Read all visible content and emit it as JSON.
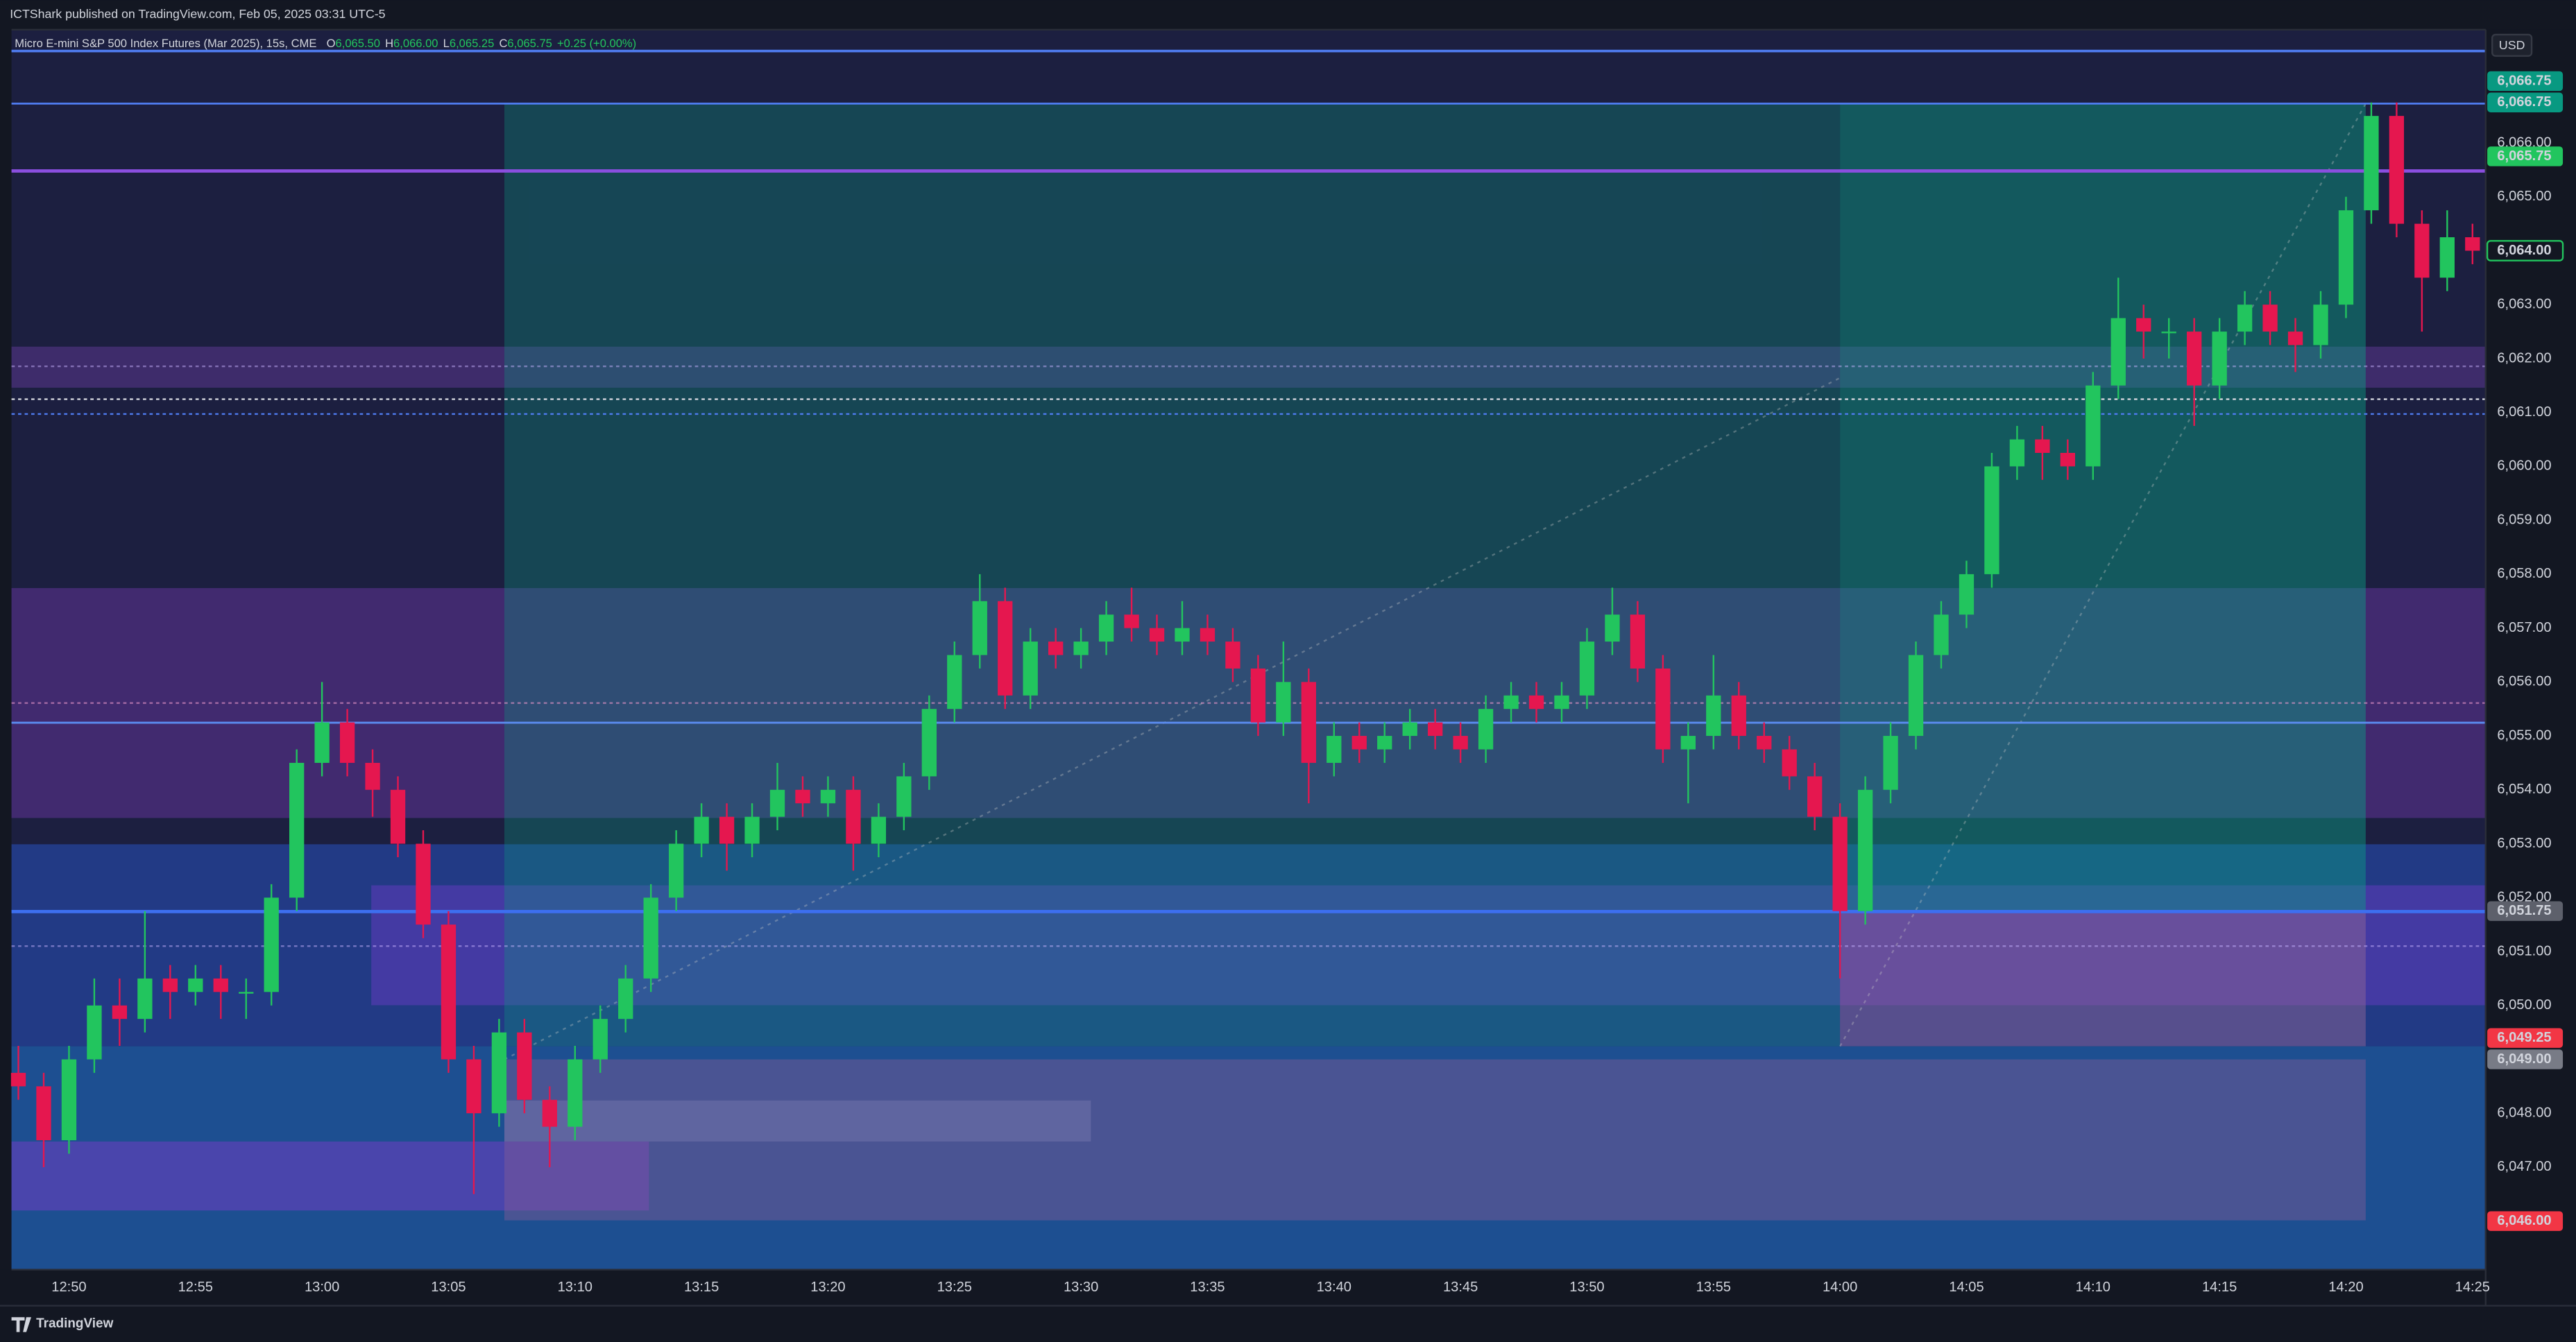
{
  "header": {
    "publisher": "ICTShark published on TradingView.com, Feb 05, 2025 03:31 UTC-5"
  },
  "footer": {
    "brand": "TradingView"
  },
  "chart_data": {
    "type": "candlestick",
    "symbol": "Micro E-mini S&P 500 Index Futures (Mar 2025), 15s, CME",
    "ohlc_legend": [
      {
        "key": "O",
        "value": "6,065.50"
      },
      {
        "key": "H",
        "value": "6,066.00"
      },
      {
        "key": "L",
        "value": "6,065.25"
      },
      {
        "key": "C",
        "value": "6,065.75"
      }
    ],
    "change": "+0.25 (+0.00%)",
    "currency": "USD",
    "up_color": "#22c55e",
    "down_color": "#e5174f",
    "grid": false,
    "ylim": [
      6045.1,
      6068.1
    ],
    "yticks": [
      {
        "value": 6047,
        "label": "6,047.00"
      },
      {
        "value": 6048,
        "label": "6,048.00"
      },
      {
        "value": 6050,
        "label": "6,050.00"
      },
      {
        "value": 6051,
        "label": "6,051.00"
      },
      {
        "value": 6052,
        "label": "6,052.00"
      },
      {
        "value": 6053,
        "label": "6,053.00"
      },
      {
        "value": 6054,
        "label": "6,054.00"
      },
      {
        "value": 6055,
        "label": "6,055.00"
      },
      {
        "value": 6056,
        "label": "6,056.00"
      },
      {
        "value": 6057,
        "label": "6,057.00"
      },
      {
        "value": 6058,
        "label": "6,058.00"
      },
      {
        "value": 6059,
        "label": "6,059.00"
      },
      {
        "value": 6060,
        "label": "6,060.00"
      },
      {
        "value": 6061,
        "label": "6,061.00"
      },
      {
        "value": 6062,
        "label": "6,062.00"
      },
      {
        "value": 6063,
        "label": "6,063.00"
      },
      {
        "value": 6065,
        "label": "6,065.00"
      },
      {
        "value": 6066,
        "label": "6,066.00"
      }
    ],
    "price_labels": [
      {
        "value": 6066.75,
        "label": "6,066.75",
        "color": "#089981",
        "text_color": "#ffffff"
      },
      {
        "value": 6066.75,
        "label": "6,066.75",
        "color": "#089981",
        "text_color": "#ffffff"
      },
      {
        "value": 6065.75,
        "label": "6,065.75",
        "color": "#22c55e",
        "text_color": "#0b1a10"
      },
      {
        "value": 6064,
        "label": "6,064.00",
        "color": "#131722",
        "text_color": "#22c55e"
      },
      {
        "value": 6051.75,
        "label": "6,051.75",
        "color": "#5d606b",
        "text_color": "#ffffff"
      },
      {
        "value": 6049.25,
        "label": "6,049.25",
        "color": "#f23645",
        "text_color": "#ffffff"
      },
      {
        "value": 6049,
        "label": "6,049.00",
        "color": "#787b86",
        "text_color": "#ffffff"
      },
      {
        "value": 6046,
        "label": "6,046.00",
        "color": "#f23645",
        "text_color": "#ffffff"
      }
    ],
    "categories": [
      null,
      null,
      "12:50",
      null,
      null,
      null,
      null,
      "12:55",
      null,
      null,
      null,
      null,
      "13:00",
      null,
      null,
      null,
      null,
      "13:05",
      null,
      null,
      null,
      null,
      "13:10",
      null,
      null,
      null,
      null,
      "13:15",
      null,
      null,
      null,
      null,
      "13:20",
      null,
      null,
      null,
      null,
      "13:25",
      null,
      null,
      null,
      null,
      "13:30",
      null,
      null,
      null,
      null,
      "13:35",
      null,
      null,
      null,
      null,
      "13:40",
      null,
      null,
      null,
      null,
      "13:45",
      null,
      null,
      null,
      null,
      "13:50",
      null,
      null,
      null,
      null,
      "13:55",
      null,
      null,
      null,
      null,
      "14:00",
      null,
      null,
      null,
      null,
      "14:05",
      null,
      null,
      null,
      null,
      "14:10",
      null,
      null,
      null,
      null,
      "14:15",
      null,
      null,
      null,
      null,
      "14:20",
      null,
      null,
      null,
      null,
      "14:25"
    ],
    "open": [
      6048.75,
      6048.5,
      6047.5,
      6049,
      6050,
      6049.75,
      6050.5,
      6050.25,
      6050.5,
      6050.25,
      6050.25,
      6052,
      6054.5,
      6055.25,
      6054.5,
      6054,
      6053,
      6051.5,
      6049,
      6048,
      6049.5,
      6048.25,
      6047.75,
      6049,
      6049.75,
      6050.5,
      6052,
      6053,
      6053.5,
      6053,
      6053.5,
      6054,
      6053.75,
      6054,
      6053,
      6053.5,
      6054.25,
      6055.5,
      6056.5,
      6057.5,
      6055.75,
      6056.75,
      6056.5,
      6056.75,
      6057.25,
      6057,
      6056.75,
      6057,
      6056.75,
      6056.25,
      6055.25,
      6056,
      6054.5,
      6055,
      6054.75,
      6055,
      6055.25,
      6055,
      6054.75,
      6055.5,
      6055.75,
      6055.5,
      6055.75,
      6056.75,
      6057.25,
      6056.25,
      6054.75,
      6055,
      6055.75,
      6055,
      6054.75,
      6054.25,
      6053.5,
      6051.75,
      6054,
      6055,
      6056.5,
      6057.25,
      6058,
      6060,
      6060.5,
      6060.25,
      6060,
      6061.5,
      6062.75,
      6062.5,
      6062.5,
      6061.5,
      6062.5,
      6063,
      6062.5,
      6062.25,
      6063,
      6064.75,
      6066.5,
      6064.5,
      6063.5,
      6064.25
    ],
    "high": [
      6049.25,
      6048.75,
      6049.25,
      6050.5,
      6050.5,
      6051.75,
      6050.75,
      6050.75,
      6050.75,
      6050.5,
      6052.25,
      6054.75,
      6056,
      6055.5,
      6054.75,
      6054.25,
      6053.25,
      6051.75,
      6049.25,
      6049.75,
      6049.75,
      6048.5,
      6049.25,
      6050,
      6050.75,
      6052.25,
      6053.25,
      6053.75,
      6053.75,
      6053.75,
      6054.5,
      6054.25,
      6054.25,
      6054.25,
      6053.75,
      6054.5,
      6055.75,
      6056.75,
      6058,
      6057.75,
      6057,
      6057,
      6057,
      6057.5,
      6057.75,
      6057.25,
      6057.5,
      6057.25,
      6057,
      6056.5,
      6056.75,
      6056.25,
      6055.25,
      6055.25,
      6055.25,
      6055.5,
      6055.5,
      6055.25,
      6055.75,
      6056,
      6056,
      6056,
      6057,
      6057.75,
      6057.5,
      6056.5,
      6055.25,
      6056.5,
      6056,
      6055.25,
      6055,
      6054.5,
      6053.75,
      6054.25,
      6055.25,
      6056.75,
      6057.5,
      6058.25,
      6060.25,
      6060.75,
      6060.75,
      6060.5,
      6061.75,
      6063.5,
      6063,
      6062.75,
      6062.75,
      6062.75,
      6063.25,
      6063.25,
      6062.75,
      6063.25,
      6065,
      6066.75,
      6066.75,
      6064.75,
      6064.75,
      6064.5
    ],
    "low": [
      6048.25,
      6047,
      6047.25,
      6048.75,
      6049.25,
      6049.5,
      6049.75,
      6050,
      6049.75,
      6049.75,
      6050,
      6051.75,
      6054.25,
      6054.25,
      6053.5,
      6052.75,
      6051.25,
      6048.75,
      6046.5,
      6047.75,
      6048,
      6047,
      6047.5,
      6048.75,
      6049.5,
      6050.25,
      6051.75,
      6052.75,
      6052.5,
      6052.75,
      6053.25,
      6053.5,
      6053.5,
      6052.5,
      6052.75,
      6053.25,
      6054,
      6055.25,
      6056.25,
      6055.5,
      6055.5,
      6056.25,
      6056.25,
      6056.5,
      6056.75,
      6056.5,
      6056.5,
      6056.5,
      6056,
      6055,
      6055,
      6053.75,
      6054.25,
      6054.5,
      6054.5,
      6054.75,
      6054.75,
      6054.5,
      6054.5,
      6055.25,
      6055.25,
      6055.25,
      6055.5,
      6056.5,
      6056,
      6054.5,
      6053.75,
      6054.75,
      6054.75,
      6054.5,
      6054,
      6053.25,
      6050.5,
      6051.5,
      6053.75,
      6054.75,
      6056.25,
      6057,
      6057.75,
      6059.75,
      6059.75,
      6059.75,
      6059.75,
      6061.25,
      6062,
      6062,
      6060.75,
      6061.25,
      6062.25,
      6062.25,
      6061.75,
      6062,
      6062.75,
      6064.5,
      6064.25,
      6062.5,
      6063.25,
      6063.75
    ],
    "close": [
      6048.5,
      6047.5,
      6049,
      6050,
      6049.75,
      6050.5,
      6050.25,
      6050.5,
      6050.25,
      6050.25,
      6052,
      6054.5,
      6055.25,
      6054.5,
      6054,
      6053,
      6051.5,
      6049,
      6048,
      6049.5,
      6048.25,
      6047.75,
      6049,
      6049.75,
      6050.5,
      6052,
      6053,
      6053.5,
      6053,
      6053.5,
      6054,
      6053.75,
      6054,
      6053,
      6053.5,
      6054.25,
      6055.5,
      6056.5,
      6057.5,
      6055.75,
      6056.75,
      6056.5,
      6056.75,
      6057.25,
      6057,
      6056.75,
      6057,
      6056.75,
      6056.25,
      6055.25,
      6056,
      6054.5,
      6055,
      6054.75,
      6055,
      6055.25,
      6055,
      6054.75,
      6055.5,
      6055.75,
      6055.5,
      6055.75,
      6056.75,
      6057.25,
      6056.25,
      6054.75,
      6055,
      6055.75,
      6055,
      6054.75,
      6054.25,
      6053.5,
      6051.75,
      6054,
      6055,
      6056.5,
      6057.25,
      6058,
      6060,
      6060.5,
      6060.25,
      6060,
      6061.5,
      6062.75,
      6062.5,
      6062.5,
      6061.5,
      6062.5,
      6063,
      6062.5,
      6062.25,
      6063,
      6064.75,
      6066.5,
      6064.5,
      6063.5,
      6064.25,
      6064
    ]
  }
}
